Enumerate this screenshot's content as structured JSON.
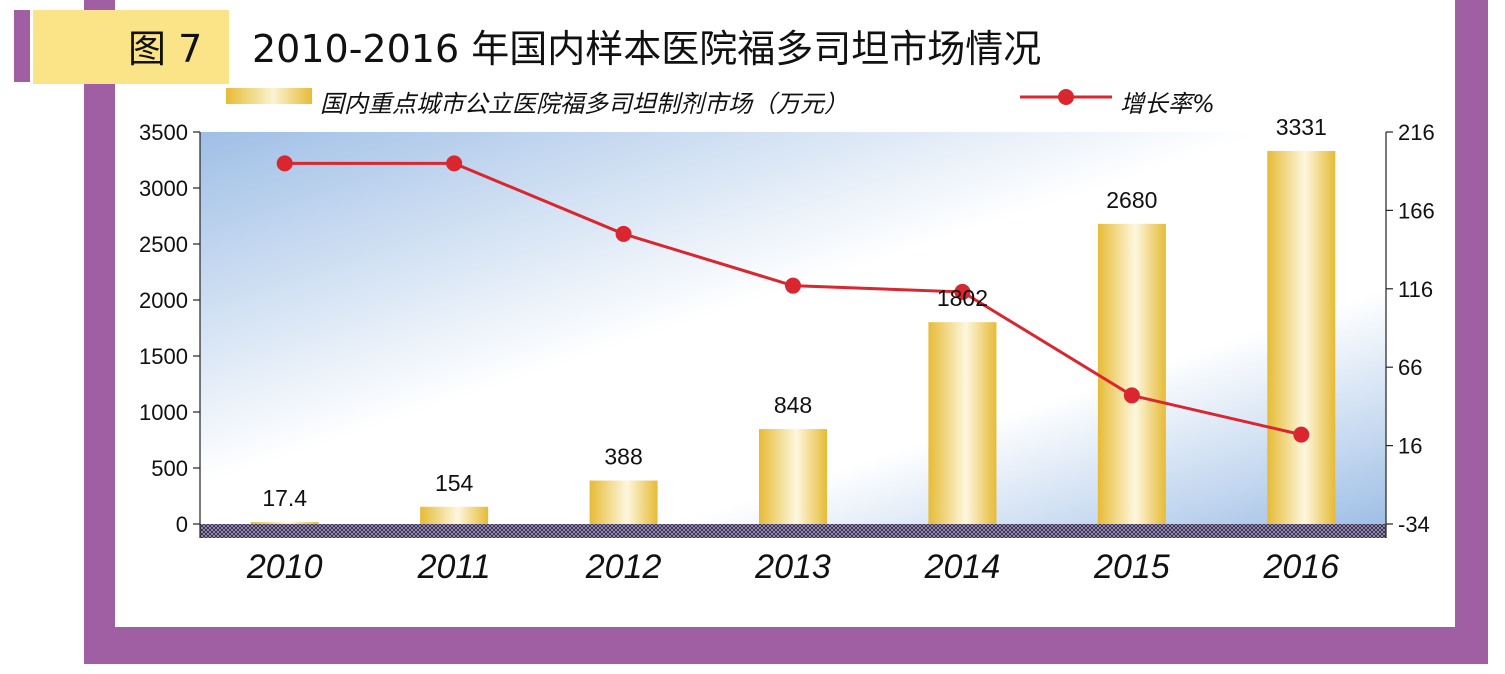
{
  "title": {
    "figure_label": "图 7",
    "text": "2010-2016 年国内样本医院福多司坦市场情况"
  },
  "colors": {
    "frame": "#a15fa3",
    "badge": "#fbe487",
    "bar": "#e6bb35",
    "line": "#d9262f",
    "plot_bg_top": "#9fbfe6"
  },
  "chart_data": {
    "type": "bar",
    "categories": [
      "2010",
      "2011",
      "2012",
      "2013",
      "2014",
      "2015",
      "2016"
    ],
    "series": [
      {
        "name": "国内重点城市公立医院福多司坦制剂市场（万元）",
        "type": "bar",
        "axis": "left",
        "values": [
          17.4,
          154,
          388,
          848,
          1802,
          2680,
          3331
        ],
        "labels": [
          "17.4",
          "154",
          "388",
          "848",
          "1802",
          "2680",
          "3331"
        ]
      },
      {
        "name": "增长率%",
        "type": "line",
        "axis": "right",
        "values": [
          196,
          196,
          151,
          118,
          114,
          48,
          23
        ]
      }
    ],
    "y_left": {
      "min": 0,
      "max": 3500,
      "ticks": [
        "0",
        "500",
        "1000",
        "1500",
        "2000",
        "2500",
        "3000",
        "3500"
      ]
    },
    "y_right": {
      "min": -34,
      "max": 216,
      "ticks": [
        "-34",
        "16",
        "66",
        "116",
        "166",
        "216"
      ]
    },
    "legend_position": "top",
    "grid": false
  },
  "legend": {
    "bar_label": "国内重点城市公立医院福多司坦制剂市场（万元）",
    "line_label": "增长率%"
  }
}
